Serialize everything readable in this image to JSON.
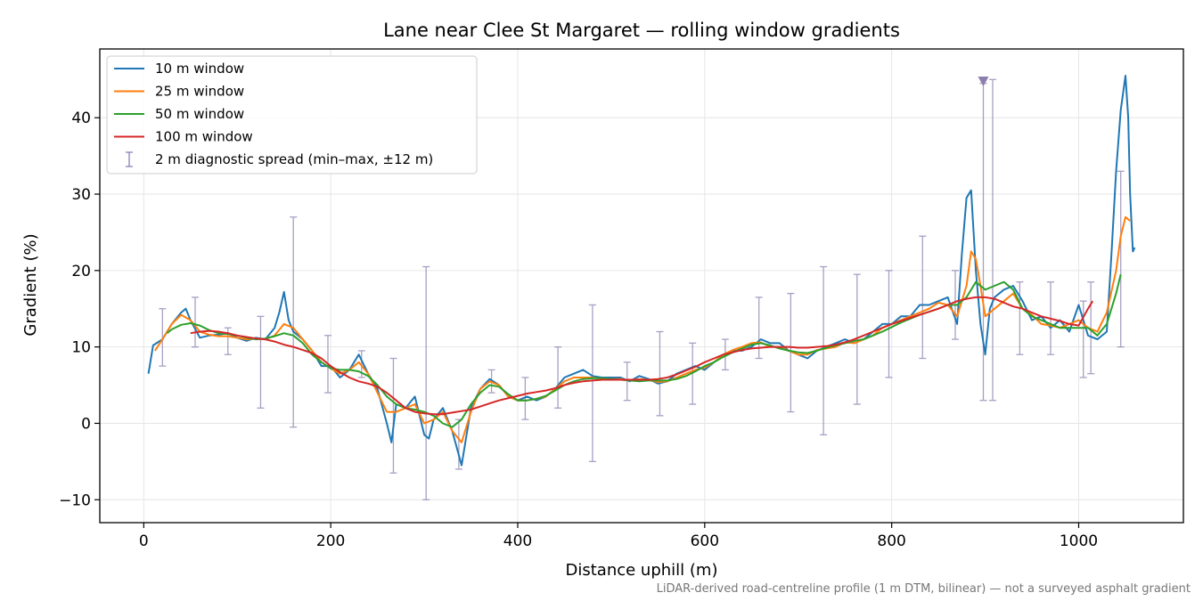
{
  "chart_data": {
    "type": "line",
    "title": "Lane near Clee St Margaret — rolling window gradients",
    "xlabel": "Distance uphill (m)",
    "ylabel": "Gradient (%)",
    "xlim": [
      -47,
      1112
    ],
    "ylim": [
      -13,
      49
    ],
    "xticks": [
      0,
      200,
      400,
      600,
      800,
      1000
    ],
    "yticks": [
      -10,
      0,
      10,
      20,
      30,
      40
    ],
    "ytick_labels": [
      "−10",
      "0",
      "10",
      "20",
      "30",
      "40"
    ],
    "grid": true,
    "legend_position": "top-left",
    "footnote": "LiDAR-derived road-centreline profile (1 m DTM, bilinear) — not a surveyed asphalt gradient",
    "series": [
      {
        "name": "10 m window",
        "color": "#1f77b4",
        "x": [
          5,
          10,
          20,
          30,
          40,
          45,
          50,
          60,
          70,
          80,
          90,
          100,
          110,
          120,
          130,
          140,
          145,
          150,
          155,
          160,
          170,
          180,
          190,
          200,
          210,
          220,
          230,
          240,
          250,
          260,
          265,
          270,
          280,
          290,
          300,
          305,
          310,
          320,
          330,
          340,
          350,
          360,
          370,
          380,
          390,
          400,
          410,
          420,
          430,
          440,
          450,
          460,
          470,
          480,
          490,
          500,
          510,
          520,
          530,
          540,
          550,
          560,
          570,
          580,
          590,
          600,
          610,
          620,
          630,
          640,
          650,
          660,
          670,
          680,
          690,
          700,
          710,
          720,
          730,
          740,
          750,
          760,
          770,
          780,
          790,
          800,
          810,
          820,
          830,
          840,
          850,
          860,
          870,
          875,
          880,
          885,
          890,
          895,
          900,
          905,
          910,
          920,
          930,
          940,
          950,
          960,
          970,
          980,
          990,
          1000,
          1010,
          1020,
          1030,
          1035,
          1040,
          1045,
          1050,
          1053,
          1055,
          1058,
          1060
        ],
        "y": [
          6.5,
          10.2,
          11,
          13,
          14.5,
          15,
          13.5,
          11.2,
          11.5,
          11.6,
          11.8,
          11.2,
          10.8,
          11.2,
          11,
          12.5,
          14.5,
          17.2,
          13.5,
          12,
          11,
          9.5,
          7.5,
          7.5,
          6,
          7,
          9,
          6.5,
          4.5,
          0,
          -2.5,
          2.5,
          2,
          3.5,
          -1.5,
          -2,
          0.5,
          2,
          -1,
          -5.5,
          2,
          4.5,
          5.8,
          5,
          3.5,
          3,
          3.5,
          3,
          3.5,
          4.5,
          6,
          6.5,
          7,
          6.2,
          6,
          6,
          6,
          5.5,
          6.2,
          5.8,
          5.2,
          5.5,
          6.5,
          7,
          7.5,
          7,
          8,
          9,
          9.5,
          9.5,
          10,
          11,
          10.5,
          10.5,
          9.5,
          9,
          8.5,
          9.5,
          10,
          10.5,
          11,
          10.5,
          11,
          12,
          13,
          13,
          14,
          14,
          15.5,
          15.5,
          16,
          16.5,
          13,
          22,
          29.5,
          30.5,
          20,
          13,
          9,
          15,
          16.5,
          17.5,
          18,
          16,
          13.5,
          14,
          12.5,
          13.5,
          12,
          15.5,
          11.5,
          11,
          12,
          22,
          33,
          41,
          45.5,
          40,
          30,
          22.5,
          23
        ]
      },
      {
        "name": "25 m window",
        "color": "#ff7f0e",
        "x": [
          12,
          20,
          30,
          40,
          50,
          60,
          70,
          80,
          90,
          100,
          110,
          120,
          130,
          140,
          150,
          160,
          170,
          180,
          190,
          200,
          210,
          220,
          230,
          240,
          250,
          260,
          270,
          280,
          290,
          300,
          310,
          320,
          330,
          340,
          350,
          360,
          370,
          380,
          390,
          400,
          410,
          420,
          430,
          440,
          450,
          460,
          470,
          480,
          490,
          500,
          510,
          520,
          530,
          540,
          550,
          560,
          570,
          580,
          590,
          600,
          610,
          620,
          630,
          640,
          650,
          660,
          670,
          680,
          690,
          700,
          710,
          720,
          730,
          740,
          750,
          760,
          770,
          780,
          790,
          800,
          810,
          820,
          830,
          840,
          850,
          860,
          870,
          880,
          885,
          890,
          895,
          900,
          910,
          920,
          930,
          940,
          950,
          960,
          970,
          980,
          990,
          1000,
          1010,
          1020,
          1030,
          1040,
          1045,
          1050,
          1055
        ],
        "y": [
          9.5,
          11,
          13,
          14.2,
          13.5,
          12,
          11.6,
          11.4,
          11.4,
          11.2,
          11,
          11.1,
          11,
          11.5,
          13,
          12.5,
          11,
          9.5,
          8,
          7.2,
          6.5,
          7,
          8,
          6.5,
          4,
          1.5,
          1.5,
          2,
          2.5,
          0,
          0.5,
          1.5,
          -1,
          -2.5,
          1.5,
          4.5,
          5.5,
          5,
          3.5,
          3,
          3,
          3.2,
          3.5,
          4.5,
          5.5,
          6,
          6,
          6,
          5.8,
          5.8,
          5.8,
          5.6,
          5.8,
          5.7,
          5.4,
          5.5,
          6,
          6.5,
          7,
          7.3,
          8,
          9,
          9.6,
          10,
          10.5,
          10.6,
          10,
          10,
          9.5,
          9,
          9,
          9.6,
          9.8,
          10,
          10.6,
          10.5,
          11,
          11.5,
          12.5,
          13,
          13.5,
          14,
          14.5,
          15,
          15.8,
          15.5,
          14,
          18,
          22.5,
          21.5,
          18,
          14,
          15,
          16,
          17,
          15,
          14.2,
          13,
          12.8,
          12.5,
          13,
          13.5,
          12.5,
          12,
          14.5,
          20,
          24.5,
          27,
          26.5
        ]
      },
      {
        "name": "50 m window",
        "color": "#2ca02c",
        "x": [
          25,
          30,
          40,
          50,
          60,
          70,
          80,
          90,
          100,
          110,
          120,
          130,
          140,
          150,
          160,
          170,
          180,
          190,
          200,
          210,
          220,
          230,
          240,
          250,
          260,
          270,
          280,
          290,
          300,
          310,
          320,
          330,
          340,
          350,
          360,
          370,
          380,
          390,
          400,
          410,
          420,
          430,
          440,
          450,
          460,
          470,
          480,
          490,
          500,
          510,
          520,
          530,
          540,
          550,
          560,
          570,
          580,
          590,
          600,
          610,
          620,
          630,
          640,
          650,
          660,
          670,
          680,
          690,
          700,
          710,
          720,
          730,
          740,
          750,
          760,
          770,
          780,
          790,
          800,
          810,
          820,
          830,
          840,
          850,
          860,
          870,
          880,
          890,
          900,
          910,
          920,
          930,
          940,
          950,
          960,
          970,
          980,
          990,
          1000,
          1010,
          1020,
          1030,
          1040,
          1045
        ],
        "y": [
          11.8,
          12.3,
          12.9,
          13.1,
          12.8,
          12.2,
          11.8,
          11.7,
          11.5,
          11.2,
          11,
          11.1,
          11.4,
          11.8,
          11.5,
          10.5,
          9,
          8,
          7.2,
          7,
          7,
          6.8,
          6.2,
          5,
          3.5,
          2.5,
          2,
          1.8,
          1.5,
          1,
          0,
          -0.5,
          0.5,
          2.5,
          4,
          5,
          4.8,
          3.8,
          3,
          3,
          3.2,
          3.6,
          4.3,
          5,
          5.5,
          5.8,
          5.9,
          5.9,
          5.8,
          5.7,
          5.6,
          5.5,
          5.6,
          5.6,
          5.6,
          5.8,
          6.2,
          6.8,
          7.5,
          8,
          8.7,
          9.3,
          9.8,
          10.3,
          10.5,
          10.2,
          9.8,
          9.5,
          9.3,
          9.2,
          9.5,
          9.9,
          10.2,
          10.5,
          10.8,
          11,
          11.5,
          12,
          12.6,
          13.2,
          13.7,
          14.2,
          14.6,
          15,
          15.5,
          15.5,
          16.5,
          18.5,
          17.5,
          18,
          18.5,
          17.5,
          15,
          14,
          13.5,
          13,
          12.5,
          12.5,
          12.5,
          12.5,
          11.5,
          13,
          17,
          19.5
        ]
      },
      {
        "name": "100 m window",
        "color": "#d62728",
        "x": [
          50,
          60,
          70,
          80,
          90,
          100,
          110,
          120,
          130,
          140,
          150,
          160,
          170,
          180,
          190,
          200,
          210,
          220,
          230,
          240,
          250,
          260,
          270,
          280,
          290,
          300,
          310,
          320,
          330,
          340,
          350,
          360,
          370,
          380,
          390,
          400,
          410,
          420,
          430,
          440,
          450,
          460,
          470,
          480,
          490,
          500,
          510,
          520,
          530,
          540,
          550,
          560,
          570,
          580,
          590,
          600,
          610,
          620,
          630,
          640,
          650,
          660,
          670,
          680,
          690,
          700,
          710,
          720,
          730,
          740,
          750,
          760,
          770,
          780,
          790,
          800,
          810,
          820,
          830,
          840,
          850,
          860,
          870,
          880,
          890,
          900,
          910,
          920,
          930,
          940,
          950,
          960,
          970,
          980,
          990,
          1000,
          1010,
          1015
        ],
        "y": [
          11.8,
          12,
          12.1,
          12,
          11.8,
          11.5,
          11.3,
          11.1,
          11,
          10.7,
          10.3,
          10,
          9.6,
          9.2,
          8.5,
          7.5,
          6.7,
          6,
          5.5,
          5.2,
          4.8,
          4,
          3,
          2,
          1.5,
          1.3,
          1.2,
          1.2,
          1.4,
          1.6,
          1.8,
          2.2,
          2.6,
          3,
          3.3,
          3.6,
          3.9,
          4.1,
          4.3,
          4.6,
          5,
          5.3,
          5.5,
          5.6,
          5.7,
          5.7,
          5.7,
          5.7,
          5.7,
          5.7,
          5.8,
          6,
          6.4,
          6.9,
          7.4,
          8,
          8.5,
          9,
          9.3,
          9.6,
          9.8,
          9.9,
          10,
          10,
          10,
          9.9,
          9.9,
          10,
          10.1,
          10.3,
          10.6,
          11,
          11.5,
          12,
          12.5,
          13,
          13.4,
          13.8,
          14.2,
          14.6,
          15,
          15.5,
          16,
          16.3,
          16.5,
          16.5,
          16.3,
          15.8,
          15.3,
          15,
          14.5,
          14,
          13.7,
          13.4,
          13,
          12.8,
          15,
          16
        ]
      }
    ],
    "error_bars": {
      "name": "2 m diagnostic spread (min–max, ±12 m)",
      "color": "#8c7fb0",
      "x": [
        20,
        55,
        90,
        125,
        160,
        197,
        233,
        267,
        302,
        337,
        372,
        408,
        443,
        480,
        517,
        552,
        587,
        622,
        658,
        692,
        727,
        763,
        797,
        833,
        868,
        898,
        908,
        937,
        970,
        1005,
        1013,
        1045
      ],
      "low": [
        7.5,
        10,
        9,
        2,
        -0.5,
        4,
        6,
        -6.5,
        -10,
        -6,
        4,
        0.5,
        2,
        -5,
        3,
        1,
        2.5,
        7,
        8.5,
        1.5,
        -1.5,
        2.5,
        6,
        8.5,
        11,
        3,
        3,
        9,
        9,
        6,
        6.5,
        10
      ],
      "high": [
        15,
        16.5,
        12.5,
        14,
        27,
        11.5,
        9.5,
        8.5,
        20.5,
        0.5,
        7,
        6,
        10,
        15.5,
        8,
        12,
        10.5,
        11,
        16.5,
        17,
        20.5,
        19.5,
        20,
        24.5,
        20,
        44.5,
        45,
        18.5,
        18.5,
        16,
        18.5,
        33
      ]
    },
    "marker": {
      "symbol": "down-triangle",
      "x": 898,
      "y": 44.8,
      "color": "#8c7fb0"
    }
  }
}
